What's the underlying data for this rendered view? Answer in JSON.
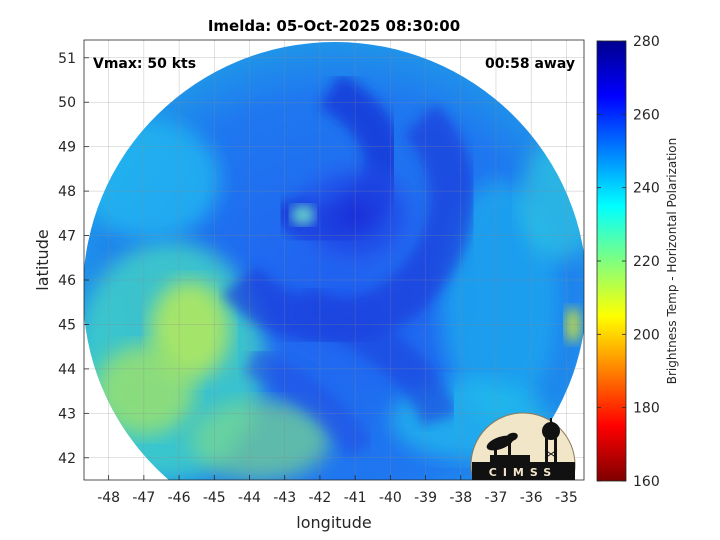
{
  "chart_data": {
    "type": "heatmap",
    "title": "Imelda: 05-Oct-2025 08:30:00",
    "xlabel": "longitude",
    "ylabel": "latitude",
    "xlim": [
      -48.7,
      -34.5
    ],
    "ylim": [
      41.5,
      51.4
    ],
    "x_ticks": [
      -48,
      -47,
      -46,
      -45,
      -44,
      -43,
      -42,
      -41,
      -40,
      -39,
      -38,
      -37,
      -36,
      -35
    ],
    "y_ticks": [
      42,
      43,
      44,
      45,
      46,
      47,
      48,
      49,
      50,
      51
    ],
    "grid": true,
    "annotations": {
      "vmax": "Vmax: 50 kts",
      "time_away": "00:58 away"
    },
    "colorbar": {
      "label": "Brightness Temp - Horizontal Polarization",
      "min": 160,
      "max": 280,
      "ticks": [
        160,
        180,
        200,
        220,
        240,
        260,
        280
      ],
      "placement": "right"
    },
    "storm_center": {
      "lon": -41.0,
      "lat": 47.7
    },
    "logo": {
      "text": "CIMSS",
      "placement": "bottom-right"
    },
    "colormap": [
      "#7f0000",
      "#ff0000",
      "#ff8000",
      "#ffff00",
      "#80ff80",
      "#00ffff",
      "#0080ff",
      "#0000ff",
      "#00008f"
    ]
  }
}
